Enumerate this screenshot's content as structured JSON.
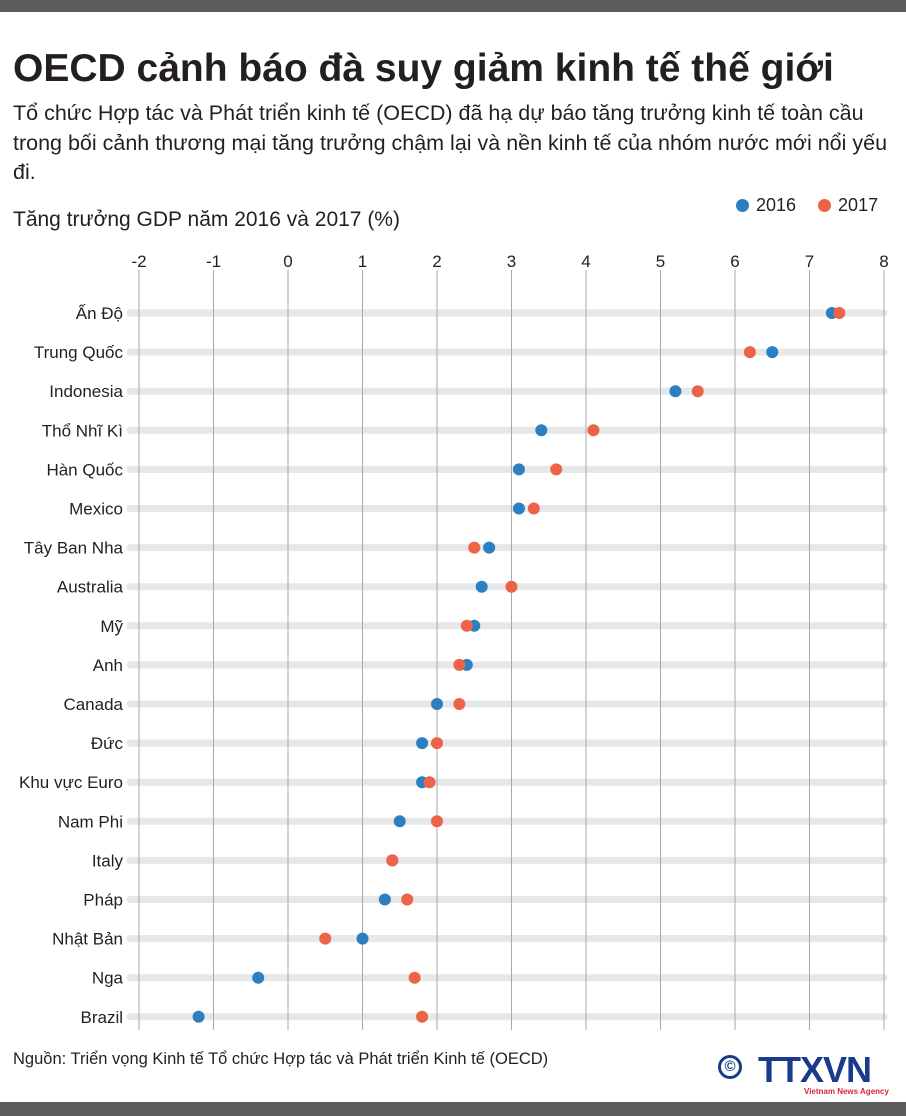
{
  "header": {
    "title": "OECD cảnh báo đà suy giảm kinh tế thế giới",
    "subtitle": "Tổ chức Hợp tác và Phát triển kinh tế (OECD) đã hạ dự báo tăng trưởng kinh tế toàn cầu trong bối cảnh thương mại tăng trưởng chậm lại và nền kinh tế của nhóm nước mới nổi yếu đi."
  },
  "chart_data": {
    "type": "scatter",
    "subtype": "dot-plot",
    "title": "Tăng trưởng GDP năm 2016 và 2017 (%)",
    "xlabel": "",
    "ylabel": "",
    "xlim": [
      -2,
      8
    ],
    "x_ticks": [
      -2,
      -1,
      0,
      1,
      2,
      3,
      4,
      5,
      6,
      7,
      8
    ],
    "x_axis_position": "top",
    "grid": true,
    "legend_position": "top-right",
    "categories": [
      "Ấn Độ",
      "Trung Quốc",
      "Indonesia",
      "Thổ Nhĩ Kì",
      "Hàn Quốc",
      "Mexico",
      "Tây Ban Nha",
      "Australia",
      "Mỹ",
      "Anh",
      "Canada",
      "Đức",
      "Khu vực Euro",
      "Nam Phi",
      "Italy",
      "Pháp",
      "Nhật Bản",
      "Nga",
      "Brazil"
    ],
    "series": [
      {
        "name": "2016",
        "color": "#2c7fc1",
        "values": [
          7.3,
          6.5,
          5.2,
          3.4,
          3.1,
          3.1,
          2.7,
          2.6,
          2.5,
          2.4,
          2.0,
          1.8,
          1.8,
          1.5,
          1.4,
          1.3,
          1.0,
          -0.4,
          -1.2
        ]
      },
      {
        "name": "2017",
        "color": "#ec6347",
        "values": [
          7.4,
          6.2,
          5.5,
          4.1,
          3.6,
          3.3,
          2.5,
          3.0,
          2.4,
          2.3,
          2.3,
          2.0,
          1.9,
          2.0,
          1.4,
          1.6,
          0.5,
          1.7,
          1.8
        ]
      }
    ]
  },
  "footer": {
    "source": "Nguồn: Triển vọng Kinh tế Tổ chức Hợp tác và Phát triển Kinh tế (OECD)",
    "copyright_symbol": "©",
    "logo_text": "TTXVN",
    "logo_subtext": "Vietnam News Agency"
  }
}
